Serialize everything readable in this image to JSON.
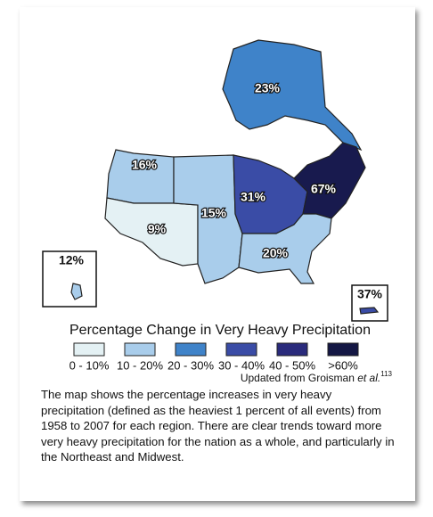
{
  "map": {
    "regions": [
      {
        "name": "alaska",
        "label": "23%",
        "color": "#3f83c9"
      },
      {
        "name": "northwest",
        "label": "16%",
        "color": "#a9cdeb"
      },
      {
        "name": "southwest",
        "label": "9%",
        "color": "#e4f1f4"
      },
      {
        "name": "great-plains",
        "label": "15%",
        "color": "#a9cdeb"
      },
      {
        "name": "midwest",
        "label": "31%",
        "color": "#3a4ca6"
      },
      {
        "name": "northeast",
        "label": "67%",
        "color": "#181a4e"
      },
      {
        "name": "southeast",
        "label": "20%",
        "color": "#a9cdeb"
      },
      {
        "name": "hawaii",
        "label": "12%",
        "color": "#a9cdeb"
      },
      {
        "name": "puerto-rico",
        "label": "37%",
        "color": "#3a4ca6"
      }
    ]
  },
  "legend": {
    "title": "Percentage Change in Very Heavy Precipitation",
    "items": [
      {
        "label": "0 - 10%",
        "color": "#e4f1f4"
      },
      {
        "label": "10 - 20%",
        "color": "#a9cdeb"
      },
      {
        "label": "20 - 30%",
        "color": "#3f83c9"
      },
      {
        "label": "30 - 40%",
        "color": "#3a4ca6"
      },
      {
        "label": "40 - 50%",
        "color": "#2a2b7c"
      },
      {
        "label": ">60%",
        "color": "#141744"
      }
    ]
  },
  "credit": {
    "prefix": "Updated from Groisman ",
    "italic": "et al.",
    "note": "113"
  },
  "caption": "The map shows the percentage increases in very heavy precipitation (defined as the heaviest 1 percent of all events) from 1958 to 2007 for each region. There are clear trends toward more very heavy precipitation for the nation as a whole, and particularly in the Northeast and Midwest."
}
